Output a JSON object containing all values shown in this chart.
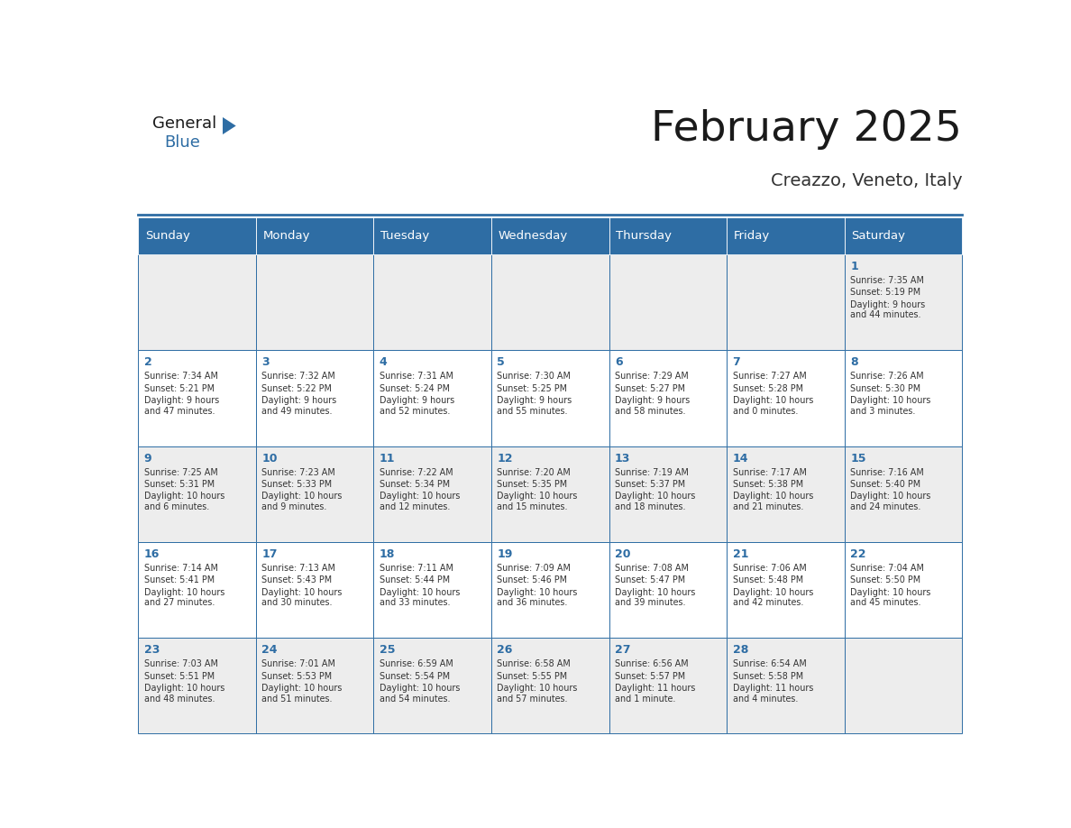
{
  "title": "February 2025",
  "subtitle": "Creazzo, Veneto, Italy",
  "header_bg": "#2E6DA4",
  "header_text_color": "#FFFFFF",
  "cell_bg_light": "#EDEDED",
  "cell_bg_white": "#FFFFFF",
  "border_color": "#2E6DA4",
  "day_headers": [
    "Sunday",
    "Monday",
    "Tuesday",
    "Wednesday",
    "Thursday",
    "Friday",
    "Saturday"
  ],
  "title_color": "#1a1a1a",
  "subtitle_color": "#333333",
  "day_num_color": "#2E6DA4",
  "cell_text_color": "#333333",
  "calendar_data": [
    [
      null,
      null,
      null,
      null,
      null,
      null,
      {
        "day": "1",
        "sunrise": "7:35 AM",
        "sunset": "5:19 PM",
        "daylight": "9 hours\nand 44 minutes."
      }
    ],
    [
      {
        "day": "2",
        "sunrise": "7:34 AM",
        "sunset": "5:21 PM",
        "daylight": "9 hours\nand 47 minutes."
      },
      {
        "day": "3",
        "sunrise": "7:32 AM",
        "sunset": "5:22 PM",
        "daylight": "9 hours\nand 49 minutes."
      },
      {
        "day": "4",
        "sunrise": "7:31 AM",
        "sunset": "5:24 PM",
        "daylight": "9 hours\nand 52 minutes."
      },
      {
        "day": "5",
        "sunrise": "7:30 AM",
        "sunset": "5:25 PM",
        "daylight": "9 hours\nand 55 minutes."
      },
      {
        "day": "6",
        "sunrise": "7:29 AM",
        "sunset": "5:27 PM",
        "daylight": "9 hours\nand 58 minutes."
      },
      {
        "day": "7",
        "sunrise": "7:27 AM",
        "sunset": "5:28 PM",
        "daylight": "10 hours\nand 0 minutes."
      },
      {
        "day": "8",
        "sunrise": "7:26 AM",
        "sunset": "5:30 PM",
        "daylight": "10 hours\nand 3 minutes."
      }
    ],
    [
      {
        "day": "9",
        "sunrise": "7:25 AM",
        "sunset": "5:31 PM",
        "daylight": "10 hours\nand 6 minutes."
      },
      {
        "day": "10",
        "sunrise": "7:23 AM",
        "sunset": "5:33 PM",
        "daylight": "10 hours\nand 9 minutes."
      },
      {
        "day": "11",
        "sunrise": "7:22 AM",
        "sunset": "5:34 PM",
        "daylight": "10 hours\nand 12 minutes."
      },
      {
        "day": "12",
        "sunrise": "7:20 AM",
        "sunset": "5:35 PM",
        "daylight": "10 hours\nand 15 minutes."
      },
      {
        "day": "13",
        "sunrise": "7:19 AM",
        "sunset": "5:37 PM",
        "daylight": "10 hours\nand 18 minutes."
      },
      {
        "day": "14",
        "sunrise": "7:17 AM",
        "sunset": "5:38 PM",
        "daylight": "10 hours\nand 21 minutes."
      },
      {
        "day": "15",
        "sunrise": "7:16 AM",
        "sunset": "5:40 PM",
        "daylight": "10 hours\nand 24 minutes."
      }
    ],
    [
      {
        "day": "16",
        "sunrise": "7:14 AM",
        "sunset": "5:41 PM",
        "daylight": "10 hours\nand 27 minutes."
      },
      {
        "day": "17",
        "sunrise": "7:13 AM",
        "sunset": "5:43 PM",
        "daylight": "10 hours\nand 30 minutes."
      },
      {
        "day": "18",
        "sunrise": "7:11 AM",
        "sunset": "5:44 PM",
        "daylight": "10 hours\nand 33 minutes."
      },
      {
        "day": "19",
        "sunrise": "7:09 AM",
        "sunset": "5:46 PM",
        "daylight": "10 hours\nand 36 minutes."
      },
      {
        "day": "20",
        "sunrise": "7:08 AM",
        "sunset": "5:47 PM",
        "daylight": "10 hours\nand 39 minutes."
      },
      {
        "day": "21",
        "sunrise": "7:06 AM",
        "sunset": "5:48 PM",
        "daylight": "10 hours\nand 42 minutes."
      },
      {
        "day": "22",
        "sunrise": "7:04 AM",
        "sunset": "5:50 PM",
        "daylight": "10 hours\nand 45 minutes."
      }
    ],
    [
      {
        "day": "23",
        "sunrise": "7:03 AM",
        "sunset": "5:51 PM",
        "daylight": "10 hours\nand 48 minutes."
      },
      {
        "day": "24",
        "sunrise": "7:01 AM",
        "sunset": "5:53 PM",
        "daylight": "10 hours\nand 51 minutes."
      },
      {
        "day": "25",
        "sunrise": "6:59 AM",
        "sunset": "5:54 PM",
        "daylight": "10 hours\nand 54 minutes."
      },
      {
        "day": "26",
        "sunrise": "6:58 AM",
        "sunset": "5:55 PM",
        "daylight": "10 hours\nand 57 minutes."
      },
      {
        "day": "27",
        "sunrise": "6:56 AM",
        "sunset": "5:57 PM",
        "daylight": "11 hours\nand 1 minute."
      },
      {
        "day": "28",
        "sunrise": "6:54 AM",
        "sunset": "5:58 PM",
        "daylight": "11 hours\nand 4 minutes."
      },
      null
    ]
  ]
}
